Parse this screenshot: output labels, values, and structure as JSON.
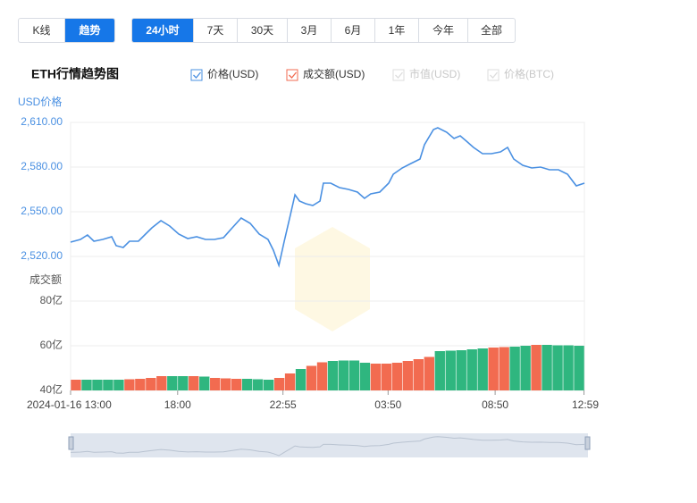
{
  "toolbar": {
    "views": [
      "K线",
      "趋势"
    ],
    "ranges": [
      "24小时",
      "7天",
      "30天",
      "3月",
      "6月",
      "1年",
      "今年",
      "全部"
    ]
  },
  "title": "ETH行情趋势图",
  "inactive_legend": [
    "市值(USD)",
    "价格(BTC)"
  ],
  "chart_data": [
    {
      "type": "line",
      "name": "价格(USD)",
      "y_axis_title": "USD价格",
      "color": "#4a90e2",
      "x": [
        0,
        0.46,
        0.79,
        1.09,
        1.5,
        1.92,
        2.13,
        2.46,
        2.75,
        3.17,
        3.46,
        3.8,
        4.22,
        4.63,
        5.05,
        5.47,
        5.89,
        6.3,
        6.72,
        7.14,
        7.55,
        7.97,
        8.39,
        8.81,
        9.22,
        9.47,
        9.73,
        9.98,
        10.27,
        10.48,
        10.69,
        10.98,
        11.31,
        11.65,
        11.81,
        12.15,
        12.56,
        12.98,
        13.4,
        13.73,
        14.02,
        14.44,
        14.86,
        15.07,
        15.49,
        15.9,
        16.32,
        16.53,
        16.95,
        17.15,
        17.57,
        17.91,
        18.2,
        18.49,
        18.82,
        19.24,
        19.66,
        20.08,
        20.41,
        20.7,
        21.12,
        21.54,
        21.95,
        22.37,
        22.79,
        23.21,
        23.62,
        24
      ],
      "values": [
        2529.6,
        2531.4,
        2534.4,
        2530.2,
        2531.4,
        2533.2,
        2527.2,
        2526,
        2530.2,
        2530.2,
        2534.4,
        2539.2,
        2544,
        2540.4,
        2535,
        2532,
        2533.2,
        2531.4,
        2531.4,
        2532.6,
        2539.2,
        2545.8,
        2542.2,
        2535,
        2531.4,
        2524.2,
        2514,
        2530.2,
        2548.2,
        2561.4,
        2557.2,
        2555.4,
        2554.2,
        2557.2,
        2569.2,
        2569.2,
        2566.2,
        2565,
        2563.2,
        2559,
        2562,
        2563.2,
        2569.2,
        2575.2,
        2579.4,
        2582.4,
        2585.4,
        2595,
        2605.2,
        2606.4,
        2603.4,
        2599.2,
        2601,
        2597.4,
        2593.2,
        2589,
        2589,
        2590.2,
        2593.2,
        2585.4,
        2581.2,
        2579.4,
        2580,
        2578.2,
        2578.2,
        2575.2,
        2567.4,
        2569.2
      ],
      "xlim": [
        0,
        24
      ],
      "ylim": [
        2514,
        2610
      ],
      "yticks": [
        {
          "value": 2520,
          "label": "2,520.00"
        },
        {
          "value": 2550,
          "label": "2,550.00"
        },
        {
          "value": 2580,
          "label": "2,580.00"
        },
        {
          "value": 2610,
          "label": "2,610.00"
        }
      ],
      "grid": true
    },
    {
      "type": "bar",
      "name": "成交额(USD)",
      "y_axis_title": "成交额",
      "up_color": "#f26b50",
      "down_color": "#2fb67f",
      "x": [
        0.25,
        0.75,
        1.25,
        1.75,
        2.25,
        2.75,
        3.25,
        3.75,
        4.25,
        4.75,
        5.25,
        5.75,
        6.25,
        6.75,
        7.25,
        7.75,
        8.25,
        8.75,
        9.25,
        9.75,
        10.25,
        10.75,
        11.25,
        11.75,
        12.25,
        12.75,
        13.25,
        13.75,
        14.25,
        14.75,
        15.25,
        15.75,
        16.25,
        16.75,
        17.25,
        17.75,
        18.25,
        18.75,
        19.25,
        19.75,
        20.25,
        20.75,
        21.25,
        21.75,
        22.25,
        22.75,
        23.25,
        23.75
      ],
      "values": [
        44.8,
        44.8,
        44.8,
        44.8,
        44.8,
        45,
        45.2,
        45.6,
        46.4,
        46.4,
        46.4,
        46.4,
        46.2,
        45.6,
        45.4,
        45.2,
        45.2,
        45,
        44.8,
        45.6,
        47.6,
        49.6,
        51,
        52.6,
        53.2,
        53.4,
        53.4,
        52.4,
        52,
        52,
        52.4,
        53.2,
        54,
        55,
        57.6,
        57.8,
        58,
        58.4,
        58.8,
        59.2,
        59.4,
        59.6,
        60,
        60.4,
        60.4,
        60.2,
        60.2,
        60
      ],
      "xlim": [
        0,
        24
      ],
      "ylim": [
        40,
        80
      ],
      "yticks": [
        {
          "value": 40,
          "label": "40亿"
        },
        {
          "value": 60,
          "label": "60亿"
        },
        {
          "value": 80,
          "label": "80亿"
        }
      ],
      "xticks": [
        {
          "value": 0,
          "label": "2024-01-16 13:00"
        },
        {
          "value": 5,
          "label": "18:00"
        },
        {
          "value": 9.92,
          "label": "22:55"
        },
        {
          "value": 14.83,
          "label": "03:50"
        },
        {
          "value": 19.83,
          "label": "08:50"
        },
        {
          "value": 23.98,
          "label": "12:59"
        }
      ],
      "grid": true
    }
  ]
}
